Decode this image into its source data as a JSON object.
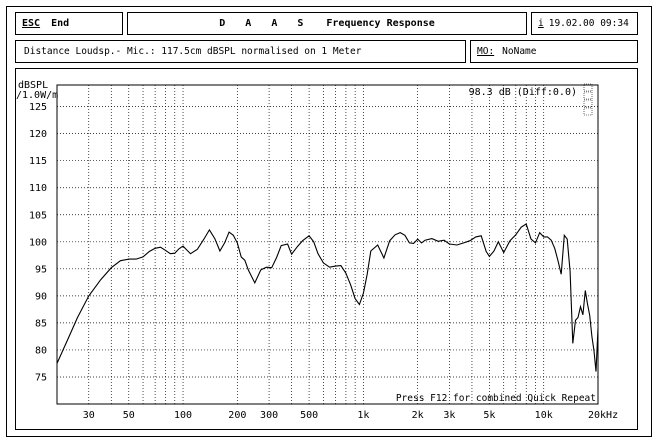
{
  "header": {
    "esc_key": "ESC",
    "esc_action": "End",
    "app_brand": "D A A S",
    "window_title": "Frequency Response",
    "info_key": "i",
    "date_time": "19.02.00  09:34"
  },
  "info_bar": {
    "measurement_note": "Distance Loudsp.- Mic.: 117.5cm dBSPL normalised on 1 Meter",
    "mo_key": "MO:",
    "mo_name": "NoName"
  },
  "chart_data": {
    "type": "line",
    "title": "Frequency Response",
    "xlabel": "",
    "x_unit": "Hz",
    "ylabel": "dBSPL /1.0W/m",
    "x_scale": "log",
    "xlim": [
      20,
      20000
    ],
    "ylim": [
      70,
      129
    ],
    "grid": true,
    "x_ticks": [
      {
        "value": 30,
        "label": "30"
      },
      {
        "value": 50,
        "label": "50"
      },
      {
        "value": 100,
        "label": "100"
      },
      {
        "value": 200,
        "label": "200"
      },
      {
        "value": 300,
        "label": "300"
      },
      {
        "value": 500,
        "label": "500"
      },
      {
        "value": 1000,
        "label": "1k"
      },
      {
        "value": 2000,
        "label": "2k"
      },
      {
        "value": 3000,
        "label": "3k"
      },
      {
        "value": 5000,
        "label": "5k"
      },
      {
        "value": 10000,
        "label": "10k"
      },
      {
        "value": 20000,
        "label": "20kHz"
      }
    ],
    "y_ticks": [
      75,
      80,
      85,
      90,
      95,
      100,
      105,
      110,
      115,
      120,
      125
    ],
    "annotations": {
      "level_readout": "98.3 dB (Diff:0.0)",
      "footer_hint": "Press F12 for combined Quick Repeat"
    },
    "series": [
      {
        "x": [
          20,
          23,
          26,
          30,
          35,
          40,
          45,
          50,
          55,
          60,
          65,
          70,
          75,
          80,
          85,
          90,
          95,
          100,
          110,
          120,
          130,
          140,
          150,
          160,
          170,
          180,
          190,
          200,
          210,
          220,
          230,
          250,
          270,
          290,
          310,
          330,
          350,
          380,
          400,
          430,
          460,
          500,
          530,
          560,
          600,
          650,
          700,
          750,
          800,
          850,
          900,
          950,
          1000,
          1050,
          1100,
          1200,
          1300,
          1400,
          1500,
          1600,
          1700,
          1800,
          1900,
          2000,
          2100,
          2200,
          2400,
          2600,
          2800,
          3000,
          3300,
          3600,
          3900,
          4200,
          4500,
          4800,
          5000,
          5300,
          5600,
          6000,
          6500,
          7000,
          7500,
          8000,
          8500,
          9000,
          9500,
          10000,
          10500,
          11000,
          11500,
          12000,
          12500,
          13000,
          13500,
          14000,
          14500,
          15000,
          15500,
          16000,
          16500,
          17000,
          17500,
          18000,
          18500,
          19000,
          19500,
          20000
        ],
        "values": [
          77.5,
          82,
          86,
          90,
          93,
          95.2,
          96.5,
          96.8,
          96.8,
          97.2,
          98.2,
          98.8,
          99,
          98.4,
          97.8,
          97.9,
          98.7,
          99.2,
          97.8,
          98.6,
          100.4,
          102.2,
          100.6,
          98.3,
          99.8,
          101.8,
          101.2,
          99.8,
          97.2,
          96.6,
          94.8,
          92.4,
          94.8,
          95.3,
          95.2,
          97.1,
          99.3,
          99.6,
          97.7,
          99.1,
          100.2,
          101.1,
          100.0,
          97.8,
          96.1,
          95.3,
          95.5,
          95.6,
          94.2,
          92.0,
          89.5,
          88.4,
          90.5,
          94.0,
          98.3,
          99.4,
          97.0,
          100.2,
          101.3,
          101.7,
          101.2,
          99.8,
          99.7,
          100.5,
          99.8,
          100.3,
          100.6,
          100.1,
          100.3,
          99.6,
          99.4,
          99.8,
          100.2,
          100.9,
          101.1,
          98.2,
          97.3,
          98.3,
          100.0,
          98.0,
          100.2,
          101.3,
          102.7,
          103.3,
          100.5,
          99.8,
          101.7,
          100.9,
          100.9,
          100.3,
          98.8,
          96.5,
          94.0,
          101.2,
          100.5,
          94.5,
          81.2,
          85.5,
          86.0,
          88.0,
          86.5,
          91.0,
          88.5,
          86.4,
          82.5,
          79.8,
          76.0,
          84.0
        ]
      }
    ]
  }
}
